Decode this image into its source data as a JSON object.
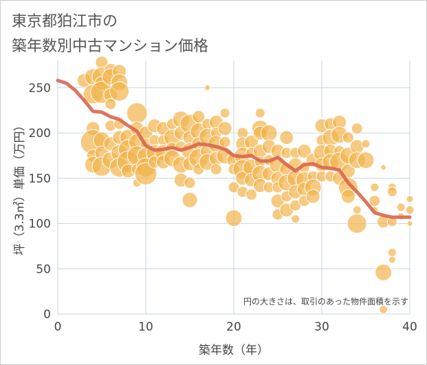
{
  "title_lines": [
    "東京都狛江市の",
    "築年数別中古マンション価格"
  ],
  "chart_data": {
    "type": "scatter",
    "title": "東京都狛江市の築年数別中古マンション価格",
    "xlabel": "築年数（年）",
    "ylabel": "坪（3.3㎡）単価（万円）",
    "xlim": [
      0,
      40
    ],
    "ylim": [
      0,
      280
    ],
    "x_ticks": [
      0,
      10,
      20,
      30,
      40
    ],
    "y_ticks": [
      0,
      50,
      100,
      150,
      200,
      250
    ],
    "grid": true,
    "note": "円の大きさは、取引のあった物件面積を示す",
    "colors": {
      "bubble": "#f2b44a",
      "line": "#d9664e",
      "grid": "#c5d5e0",
      "axis_text": "#444444"
    },
    "series": [
      {
        "type": "line",
        "points": [
          [
            0,
            258
          ],
          [
            1,
            255
          ],
          [
            2,
            247
          ],
          [
            3,
            236
          ],
          [
            4,
            224
          ],
          [
            5,
            223
          ],
          [
            6,
            218
          ],
          [
            7,
            215
          ],
          [
            8,
            208
          ],
          [
            9,
            202
          ],
          [
            10,
            186
          ],
          [
            11,
            181
          ],
          [
            12,
            182
          ],
          [
            13,
            184
          ],
          [
            14,
            181
          ],
          [
            15,
            184
          ],
          [
            16,
            188
          ],
          [
            17,
            187
          ],
          [
            18,
            185
          ],
          [
            19,
            182
          ],
          [
            20,
            175
          ],
          [
            21,
            174
          ],
          [
            22,
            175
          ],
          [
            23,
            169
          ],
          [
            24,
            169
          ],
          [
            25,
            173
          ],
          [
            26,
            165
          ],
          [
            27,
            158
          ],
          [
            28,
            165
          ],
          [
            29,
            166
          ],
          [
            30,
            162
          ],
          [
            31,
            161
          ],
          [
            32,
            159
          ],
          [
            33,
            145
          ],
          [
            34,
            135
          ],
          [
            35,
            124
          ],
          [
            36,
            112
          ],
          [
            37,
            109
          ],
          [
            38,
            107
          ],
          [
            39,
            107
          ],
          [
            40,
            107
          ]
        ]
      },
      {
        "type": "bubble",
        "points": [
          [
            3,
            258,
            10
          ],
          [
            4,
            262,
            12
          ],
          [
            4,
            243,
            14
          ],
          [
            5,
            278,
            9
          ],
          [
            5,
            262,
            14
          ],
          [
            5,
            255,
            10
          ],
          [
            5,
            245,
            16
          ],
          [
            6,
            270,
            9
          ],
          [
            6,
            262,
            12
          ],
          [
            6,
            242,
            10
          ],
          [
            6,
            232,
            8
          ],
          [
            7,
            268,
            10
          ],
          [
            7,
            256,
            12
          ],
          [
            7,
            246,
            14
          ],
          [
            4,
            205,
            10
          ],
          [
            4,
            190,
            18
          ],
          [
            4,
            175,
            9
          ],
          [
            4,
            165,
            12
          ],
          [
            5,
            192,
            12
          ],
          [
            5,
            178,
            10
          ],
          [
            5,
            163,
            14
          ],
          [
            6,
            208,
            8
          ],
          [
            6,
            188,
            10
          ],
          [
            6,
            170,
            12
          ],
          [
            7,
            210,
            8
          ],
          [
            7,
            195,
            10
          ],
          [
            7,
            178,
            12
          ],
          [
            7,
            162,
            14
          ],
          [
            8,
            195,
            12
          ],
          [
            8,
            182,
            14
          ],
          [
            8,
            168,
            16
          ],
          [
            8,
            158,
            10
          ],
          [
            9,
            222,
            15
          ],
          [
            9,
            205,
            10
          ],
          [
            9,
            190,
            12
          ],
          [
            9,
            175,
            14
          ],
          [
            9,
            160,
            8
          ],
          [
            9,
            145,
            6
          ],
          [
            10,
            200,
            10
          ],
          [
            10,
            188,
            8
          ],
          [
            10,
            175,
            12
          ],
          [
            10,
            162,
            14
          ],
          [
            10,
            155,
            16
          ],
          [
            11,
            208,
            10
          ],
          [
            11,
            192,
            8
          ],
          [
            11,
            178,
            12
          ],
          [
            11,
            168,
            9
          ],
          [
            12,
            205,
            10
          ],
          [
            12,
            192,
            8
          ],
          [
            12,
            178,
            12
          ],
          [
            12,
            168,
            10
          ],
          [
            13,
            210,
            8
          ],
          [
            13,
            195,
            12
          ],
          [
            13,
            182,
            10
          ],
          [
            13,
            172,
            12
          ],
          [
            14,
            215,
            12
          ],
          [
            14,
            200,
            10
          ],
          [
            14,
            185,
            8
          ],
          [
            14,
            165,
            12
          ],
          [
            14,
            148,
            10
          ],
          [
            15,
            210,
            14
          ],
          [
            15,
            195,
            10
          ],
          [
            15,
            180,
            12
          ],
          [
            15,
            166,
            10
          ],
          [
            15,
            145,
            8
          ],
          [
            15,
            126,
            11
          ],
          [
            16,
            218,
            9
          ],
          [
            16,
            202,
            12
          ],
          [
            16,
            188,
            10
          ],
          [
            16,
            172,
            14
          ],
          [
            16,
            160,
            8
          ],
          [
            17,
            250,
            4
          ],
          [
            17,
            210,
            8
          ],
          [
            17,
            196,
            12
          ],
          [
            17,
            180,
            10
          ],
          [
            17,
            168,
            12
          ],
          [
            18,
            212,
            10
          ],
          [
            18,
            200,
            8
          ],
          [
            18,
            188,
            12
          ],
          [
            18,
            172,
            10
          ],
          [
            18,
            160,
            8
          ],
          [
            19,
            222,
            7
          ],
          [
            19,
            205,
            10
          ],
          [
            19,
            190,
            8
          ],
          [
            19,
            175,
            12
          ],
          [
            20,
            140,
            8
          ],
          [
            20,
            106,
            12
          ],
          [
            20,
            170,
            10
          ],
          [
            20,
            160,
            8
          ],
          [
            21,
            200,
            8
          ],
          [
            21,
            188,
            10
          ],
          [
            21,
            175,
            12
          ],
          [
            21,
            160,
            14
          ],
          [
            21,
            150,
            10
          ],
          [
            21,
            135,
            8
          ],
          [
            22,
            190,
            10
          ],
          [
            22,
            178,
            8
          ],
          [
            22,
            162,
            12
          ],
          [
            22,
            148,
            10
          ],
          [
            22,
            132,
            8
          ],
          [
            23,
            222,
            7
          ],
          [
            23,
            205,
            12
          ],
          [
            23,
            200,
            10
          ],
          [
            23,
            180,
            10
          ],
          [
            23,
            168,
            8
          ],
          [
            23,
            155,
            12
          ],
          [
            23,
            142,
            10
          ],
          [
            24,
            200,
            12
          ],
          [
            24,
            185,
            10
          ],
          [
            24,
            170,
            8
          ],
          [
            24,
            155,
            10
          ],
          [
            24,
            140,
            8
          ],
          [
            25,
            180,
            10
          ],
          [
            25,
            165,
            12
          ],
          [
            25,
            150,
            10
          ],
          [
            25,
            140,
            8
          ],
          [
            25,
            125,
            10
          ],
          [
            25,
            110,
            8
          ],
          [
            26,
            195,
            10
          ],
          [
            26,
            178,
            8
          ],
          [
            26,
            160,
            10
          ],
          [
            26,
            145,
            12
          ],
          [
            26,
            130,
            8
          ],
          [
            26,
            115,
            10
          ],
          [
            27,
            178,
            8
          ],
          [
            27,
            165,
            10
          ],
          [
            27,
            150,
            12
          ],
          [
            27,
            135,
            10
          ],
          [
            27,
            120,
            8
          ],
          [
            27,
            105,
            6
          ],
          [
            28,
            180,
            10
          ],
          [
            28,
            162,
            8
          ],
          [
            28,
            148,
            12
          ],
          [
            28,
            138,
            10
          ],
          [
            28,
            125,
            8
          ],
          [
            29,
            170,
            10
          ],
          [
            29,
            152,
            8
          ],
          [
            29,
            140,
            12
          ],
          [
            29,
            130,
            10
          ],
          [
            30,
            208,
            10
          ],
          [
            30,
            192,
            8
          ],
          [
            30,
            178,
            12
          ],
          [
            30,
            165,
            10
          ],
          [
            30,
            152,
            8
          ],
          [
            31,
            210,
            9
          ],
          [
            31,
            195,
            12
          ],
          [
            31,
            180,
            10
          ],
          [
            31,
            168,
            12
          ],
          [
            31,
            152,
            8
          ],
          [
            32,
            212,
            10
          ],
          [
            32,
            198,
            12
          ],
          [
            32,
            180,
            8
          ],
          [
            32,
            168,
            14
          ],
          [
            32,
            150,
            10
          ],
          [
            33,
            195,
            8
          ],
          [
            33,
            175,
            12
          ],
          [
            33,
            158,
            10
          ],
          [
            33,
            140,
            14
          ],
          [
            33,
            130,
            10
          ],
          [
            34,
            205,
            8
          ],
          [
            34,
            185,
            10
          ],
          [
            34,
            170,
            12
          ],
          [
            34,
            100,
            14
          ],
          [
            34,
            115,
            6
          ],
          [
            35,
            188,
            6
          ],
          [
            35,
            170,
            12
          ],
          [
            36,
            140,
            6
          ],
          [
            36,
            125,
            8
          ],
          [
            36,
            115,
            5
          ],
          [
            37,
            162,
            4
          ],
          [
            37,
            102,
            9
          ],
          [
            37,
            46,
            12
          ],
          [
            37,
            5,
            6
          ],
          [
            38,
            140,
            6
          ],
          [
            38,
            135,
            7
          ],
          [
            38,
            102,
            7
          ],
          [
            38,
            68,
            6
          ],
          [
            38,
            60,
            5
          ],
          [
            39,
            118,
            6
          ],
          [
            39,
            108,
            5
          ],
          [
            40,
            127,
            5
          ],
          [
            40,
            115,
            6
          ],
          [
            40,
            100,
            4
          ]
        ]
      }
    ]
  }
}
